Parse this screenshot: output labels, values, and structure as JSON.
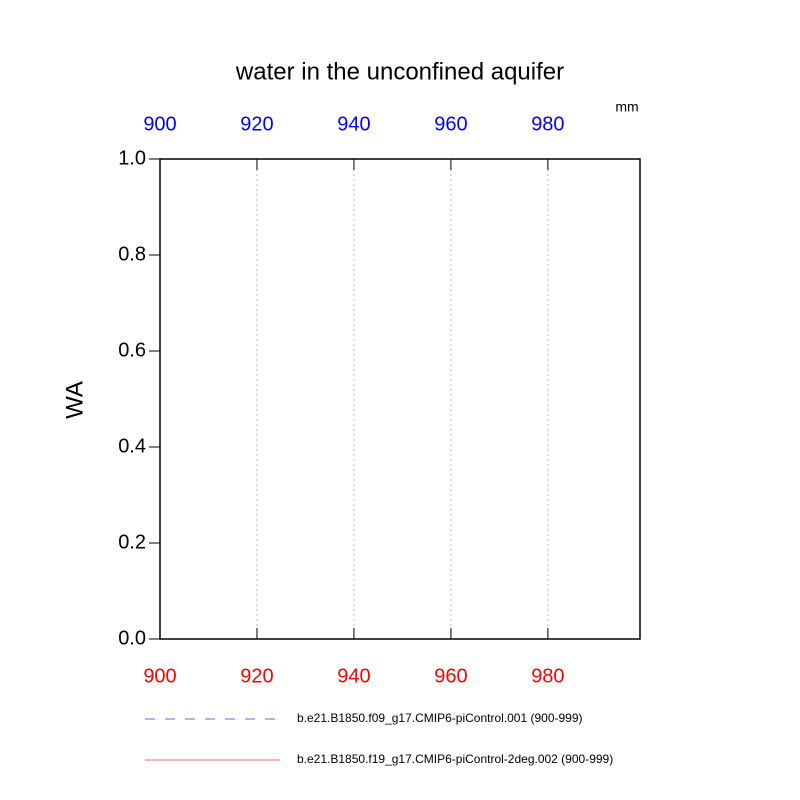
{
  "chart_data": {
    "type": "line",
    "title": "water in the unconfined aquifer",
    "units": "mm",
    "ylabel": "WA",
    "x": [],
    "series": [
      {
        "name": "b.e21.B1850.f09_g17.CMIP6-piControl.001 (900-999)",
        "color": "#0000ff",
        "dashed": true,
        "values": []
      },
      {
        "name": "b.e21.B1850.f19_g17.CMIP6-piControl-2deg.002 (900-999)",
        "color": "#ff0000",
        "dashed": false,
        "values": []
      }
    ],
    "xlim": [
      900,
      999
    ],
    "xticks": [
      900,
      920,
      940,
      960,
      980
    ],
    "ylim": [
      0,
      1
    ],
    "yticks": [
      {
        "value": 0,
        "label": "0.0"
      },
      {
        "value": 0.2,
        "label": "0.2"
      },
      {
        "value": 0.4,
        "label": "0.4"
      },
      {
        "value": 0.6,
        "label": "0.6"
      },
      {
        "value": 0.8,
        "label": "0.8"
      },
      {
        "value": 1,
        "label": "1.0"
      }
    ],
    "grid": true,
    "top_axis_color": "#0000ff",
    "bottom_axis_color": "#ff0000"
  }
}
